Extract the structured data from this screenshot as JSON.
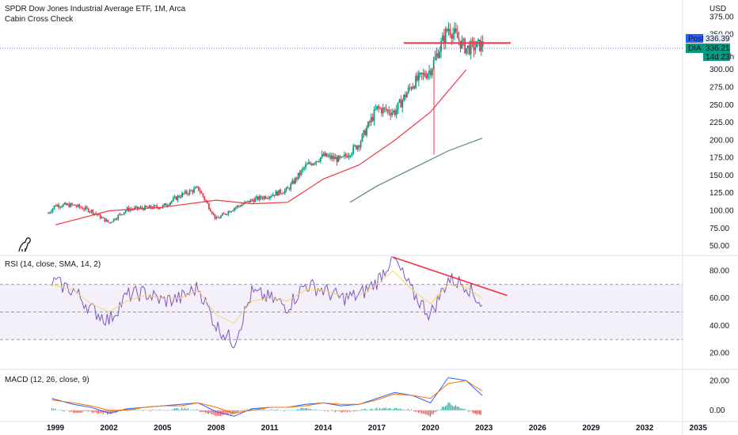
{
  "header": {
    "title": "SPDR Dow Jones Industrial Average ETF, 1M, Arca",
    "indicator": "Cabin Cross Check"
  },
  "price_scale": {
    "currency": "USD",
    "ticks": [
      "375.00",
      "350.00",
      "300.00",
      "275.00",
      "250.00",
      "225.00",
      "200.00",
      "175.00",
      "150.00",
      "125.00",
      "100.00",
      "75.00",
      "50.00"
    ],
    "post_label": "Post",
    "post_value": "336.39",
    "dia_label": "DIA",
    "dia_value": "336.21",
    "countdown": "14d 23h",
    "post_color": "#2962ff",
    "dia_color": "#089981"
  },
  "time_axis": [
    "1999",
    "2002",
    "2005",
    "2008",
    "2011",
    "2014",
    "2017",
    "2020",
    "2023",
    "2026",
    "2029",
    "2032",
    "2035"
  ],
  "rsi_panel": {
    "label": "RSI (14, close, SMA, 14, 2)",
    "ticks": [
      "80.00",
      "60.00",
      "40.00",
      "20.00"
    ]
  },
  "macd_panel": {
    "label": "MACD (12, 26, close, 9)",
    "ticks": [
      "20.00",
      "0.00"
    ]
  },
  "colors": {
    "up": "#089981",
    "down": "#f23645",
    "ma_fast": "#f23645",
    "ma_slow": "#5b8a6e",
    "rsi": "#7e57c2",
    "rsi_ma": "#f7d56b",
    "macd": "#2962ff",
    "signal": "#ff6d00",
    "trendline": "#f23645"
  },
  "chart_data": [
    {
      "type": "candlestick",
      "title": "SPDR Dow Jones Industrial Average ETF, 1M, Arca",
      "ylabel": "USD",
      "x": [
        "1998",
        "1999",
        "2000",
        "2001",
        "2002",
        "2003",
        "2004",
        "2005",
        "2006",
        "2007",
        "2008",
        "2009",
        "2010",
        "2011",
        "2012",
        "2013",
        "2014",
        "2015",
        "2016",
        "2017",
        "2018",
        "2019",
        "2020",
        "2021",
        "2022",
        "2023"
      ],
      "close": [
        80,
        108,
        108,
        100,
        83,
        102,
        104,
        106,
        122,
        132,
        88,
        104,
        115,
        122,
        130,
        163,
        178,
        172,
        195,
        245,
        240,
        280,
        300,
        360,
        330,
        336
      ],
      "ylim": [
        40,
        390
      ],
      "overlays": [
        {
          "name": "MA fast",
          "x": [
            "1999",
            "2002",
            "2005",
            "2008",
            "2010",
            "2012",
            "2014",
            "2016",
            "2018",
            "2020",
            "2022"
          ],
          "values": [
            80,
            100,
            105,
            115,
            110,
            112,
            145,
            165,
            200,
            240,
            300
          ]
        },
        {
          "name": "MA slow",
          "x": [
            "2015.5",
            "2017",
            "2019",
            "2021",
            "2022.9"
          ],
          "values": [
            112,
            135,
            160,
            185,
            203
          ]
        }
      ],
      "hline": {
        "value": 338,
        "from": "2018.5",
        "to": "2024.5"
      }
    },
    {
      "type": "line",
      "title": "RSI (14, close, SMA, 14, 2)",
      "ylim": [
        10,
        90
      ],
      "bands": [
        30,
        50,
        70
      ],
      "x": [
        "1998.8",
        "2000",
        "2001",
        "2002",
        "2003",
        "2004",
        "2005",
        "2006",
        "2007",
        "2008",
        "2009",
        "2010",
        "2011",
        "2012",
        "2013",
        "2014",
        "2015",
        "2016",
        "2017",
        "2017.9",
        "2019",
        "2020",
        "2021",
        "2022",
        "2022.9"
      ],
      "series": [
        {
          "name": "RSI",
          "values": [
            72,
            66,
            52,
            44,
            62,
            64,
            58,
            60,
            68,
            40,
            28,
            64,
            60,
            54,
            70,
            66,
            60,
            62,
            72,
            90,
            64,
            48,
            74,
            70,
            55
          ]
        },
        {
          "name": "RSI MA",
          "values": [
            70,
            66,
            56,
            50,
            58,
            62,
            60,
            60,
            66,
            48,
            42,
            58,
            60,
            58,
            66,
            66,
            62,
            62,
            70,
            80,
            66,
            56,
            70,
            68,
            60
          ]
        }
      ],
      "trendline": {
        "x": [
          "2017.9",
          "2024.3"
        ],
        "values": [
          90,
          62
        ]
      }
    },
    {
      "type": "line",
      "title": "MACD (12, 26, close, 9)",
      "ylim": [
        -6,
        26
      ],
      "x": [
        "1998.8",
        "2000",
        "2001",
        "2002",
        "2003",
        "2004",
        "2005",
        "2006",
        "2007",
        "2008",
        "2009",
        "2010",
        "2011",
        "2012",
        "2013",
        "2014",
        "2015",
        "2016",
        "2017",
        "2018",
        "2019",
        "2020",
        "2021",
        "2022",
        "2022.9"
      ],
      "series": [
        {
          "name": "MACD",
          "values": [
            8,
            4,
            2,
            -2,
            1,
            2,
            3,
            4,
            5,
            -1,
            -4,
            1,
            2,
            2,
            4,
            5,
            3,
            4,
            8,
            12,
            10,
            5,
            22,
            20,
            10
          ]
        },
        {
          "name": "Signal",
          "values": [
            7,
            5,
            3,
            0,
            0,
            2,
            3,
            3,
            5,
            2,
            -2,
            0,
            2,
            2,
            3,
            5,
            4,
            4,
            7,
            11,
            10,
            8,
            18,
            20,
            13
          ]
        }
      ]
    }
  ]
}
